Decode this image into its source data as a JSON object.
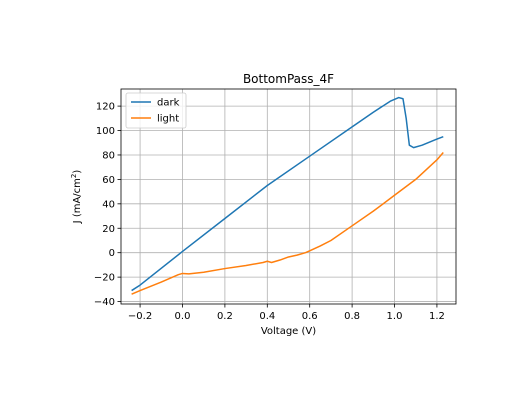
{
  "chart_data": {
    "type": "line",
    "title": "BottomPass_4F",
    "xlabel": "Voltage (V)",
    "ylabel_main": "J (mA/cm",
    "ylabel_sup": "2",
    "ylabel_close": ")",
    "xlim": [
      -0.29,
      1.29
    ],
    "ylim": [
      -42,
      134
    ],
    "xticks": [
      -0.2,
      0.0,
      0.2,
      0.4,
      0.6,
      0.8,
      1.0,
      1.2
    ],
    "xtick_labels": [
      "−0.2",
      "0.0",
      "0.2",
      "0.4",
      "0.6",
      "0.8",
      "1.0",
      "1.2"
    ],
    "yticks": [
      -40,
      -20,
      0,
      20,
      40,
      60,
      80,
      100,
      120
    ],
    "ytick_labels": [
      "−40",
      "−20",
      "0",
      "20",
      "40",
      "60",
      "80",
      "100",
      "120"
    ],
    "grid": true,
    "legend_position": "top-left",
    "series": [
      {
        "name": "dark",
        "color": "#1f77b4",
        "points": [
          [
            -0.24,
            -31
          ],
          [
            -0.2,
            -26.5
          ],
          [
            0.0,
            1
          ],
          [
            0.2,
            28
          ],
          [
            0.4,
            55
          ],
          [
            0.6,
            79
          ],
          [
            0.8,
            103
          ],
          [
            0.9,
            115
          ],
          [
            0.98,
            124
          ],
          [
            1.02,
            127
          ],
          [
            1.04,
            126
          ],
          [
            1.055,
            110
          ],
          [
            1.07,
            88
          ],
          [
            1.09,
            86
          ],
          [
            1.13,
            88
          ],
          [
            1.2,
            93
          ],
          [
            1.23,
            95
          ]
        ]
      },
      {
        "name": "light",
        "color": "#ff7f0e",
        "points": [
          [
            -0.24,
            -34
          ],
          [
            -0.2,
            -31
          ],
          [
            -0.1,
            -24
          ],
          [
            -0.02,
            -18
          ],
          [
            0.0,
            -17
          ],
          [
            0.03,
            -17.3
          ],
          [
            0.1,
            -16
          ],
          [
            0.2,
            -13
          ],
          [
            0.3,
            -10.5
          ],
          [
            0.38,
            -8
          ],
          [
            0.4,
            -7
          ],
          [
            0.42,
            -8
          ],
          [
            0.46,
            -6
          ],
          [
            0.5,
            -3.5
          ],
          [
            0.54,
            -2
          ],
          [
            0.58,
            0
          ],
          [
            0.6,
            1.5
          ],
          [
            0.65,
            5.5
          ],
          [
            0.7,
            10
          ],
          [
            0.8,
            22
          ],
          [
            0.9,
            34
          ],
          [
            1.0,
            47
          ],
          [
            1.1,
            60
          ],
          [
            1.2,
            76
          ],
          [
            1.23,
            82
          ]
        ]
      }
    ]
  }
}
